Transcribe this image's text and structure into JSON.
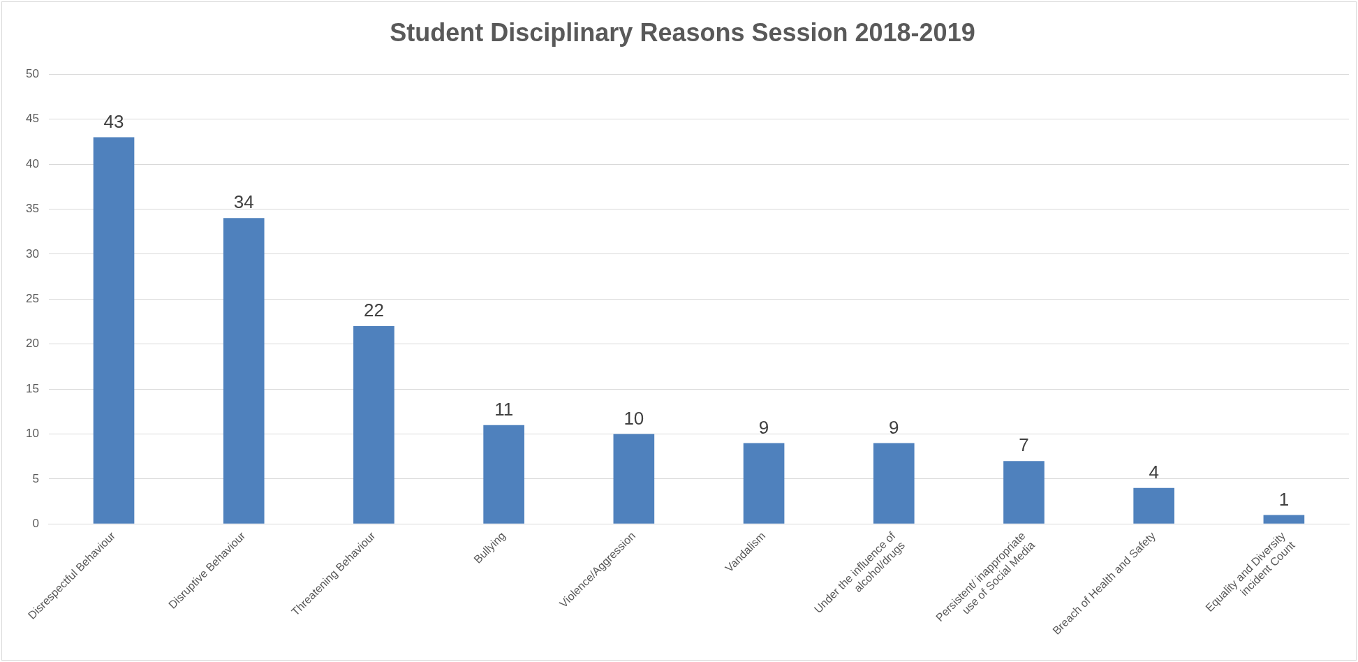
{
  "chart_data": {
    "type": "bar",
    "title": "Student Disciplinary Reasons Session 2018-2019",
    "categories": [
      "Disrespectful Behaviour",
      "Disruptive Behaviour",
      "Threatening Behaviour",
      "Bullying",
      "Violence/Aggression",
      "Vandalism",
      "Under the influence of\nalcohol/drugs",
      "Persistent/ inappropriate\nuse of Social Media",
      "Breach of Health and Safety",
      "Equality and Diversity\nincident Count"
    ],
    "values": [
      43,
      34,
      22,
      11,
      10,
      9,
      9,
      7,
      4,
      1
    ],
    "color": "#4f81bd",
    "ylim": [
      0,
      50
    ],
    "yticks": [
      0,
      5,
      10,
      15,
      20,
      25,
      30,
      35,
      40,
      45,
      50
    ],
    "grid": "y",
    "data_labels": true,
    "legend": false
  }
}
